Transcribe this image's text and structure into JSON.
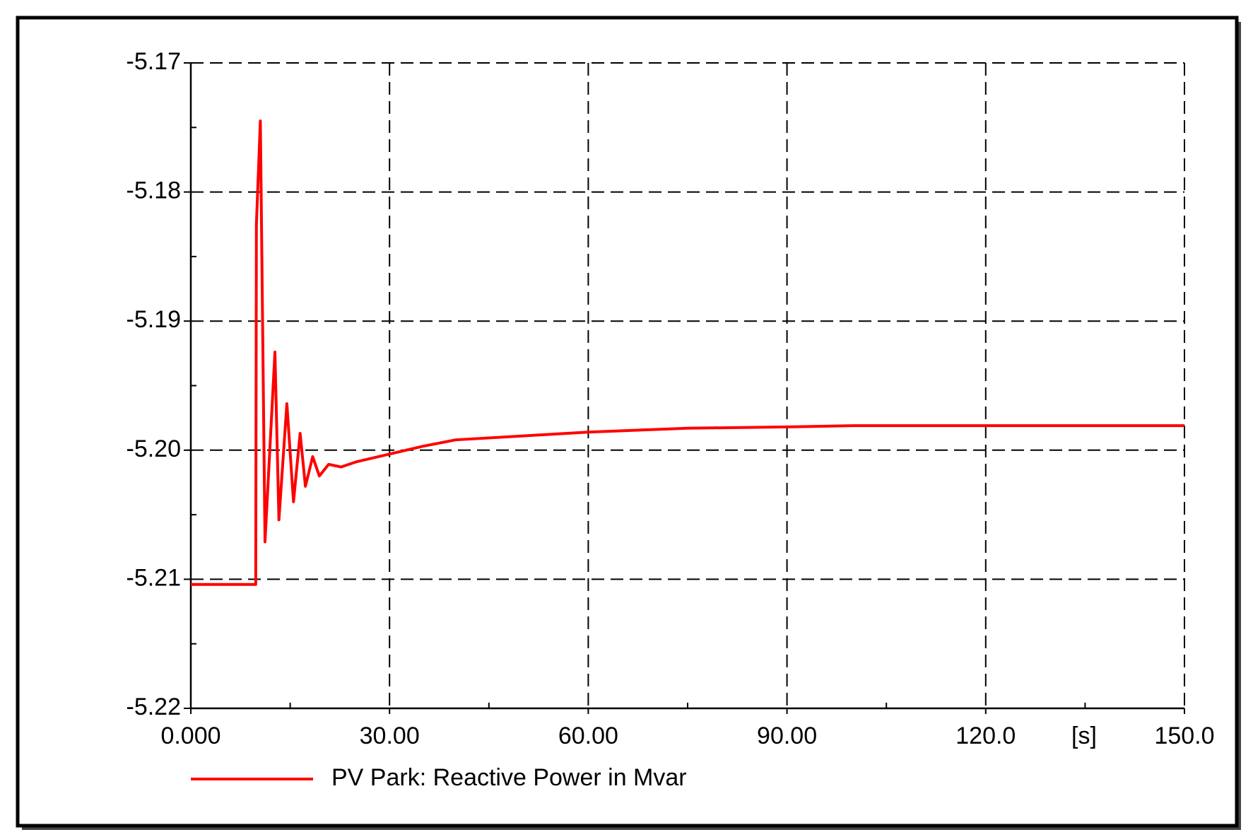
{
  "chart_data": {
    "type": "line",
    "xlabel": "[s]",
    "xlim": [
      0,
      150
    ],
    "ylim": [
      -5.22,
      -5.17
    ],
    "xticks": [
      {
        "value": 0,
        "label": "0.000"
      },
      {
        "value": 30,
        "label": "30.00"
      },
      {
        "value": 60,
        "label": "60.00"
      },
      {
        "value": 90,
        "label": "90.00"
      },
      {
        "value": 120,
        "label": "120.0"
      },
      {
        "value": 150,
        "label": "150.0"
      }
    ],
    "yticks": [
      -5.22,
      -5.21,
      {
        "value": -5.2,
        "label": "-5.20"
      },
      -5.19,
      -5.18,
      -5.17
    ],
    "grid": true,
    "x": [
      0,
      9.8,
      9.9,
      10.5,
      11.2,
      12.7,
      13.3,
      14.5,
      15.5,
      16.5,
      17.3,
      18.4,
      19.4,
      20.8,
      22.7,
      25,
      30,
      35,
      40,
      50,
      60,
      75,
      90,
      100,
      150
    ],
    "series": [
      {
        "name": "PV Park: Reactive Power in Mvar",
        "color": "#ff0000",
        "values": [
          -5.2104,
          -5.2104,
          -5.1825,
          -5.1745,
          -5.2071,
          -5.1924,
          -5.2054,
          -5.1964,
          -5.204,
          -5.1987,
          -5.2028,
          -5.2005,
          -5.202,
          -5.2011,
          -5.2013,
          -5.2009,
          -5.2003,
          -5.1997,
          -5.1992,
          -5.1989,
          -5.1986,
          -5.1983,
          -5.1982,
          -5.1981,
          -5.1981
        ]
      }
    ]
  }
}
